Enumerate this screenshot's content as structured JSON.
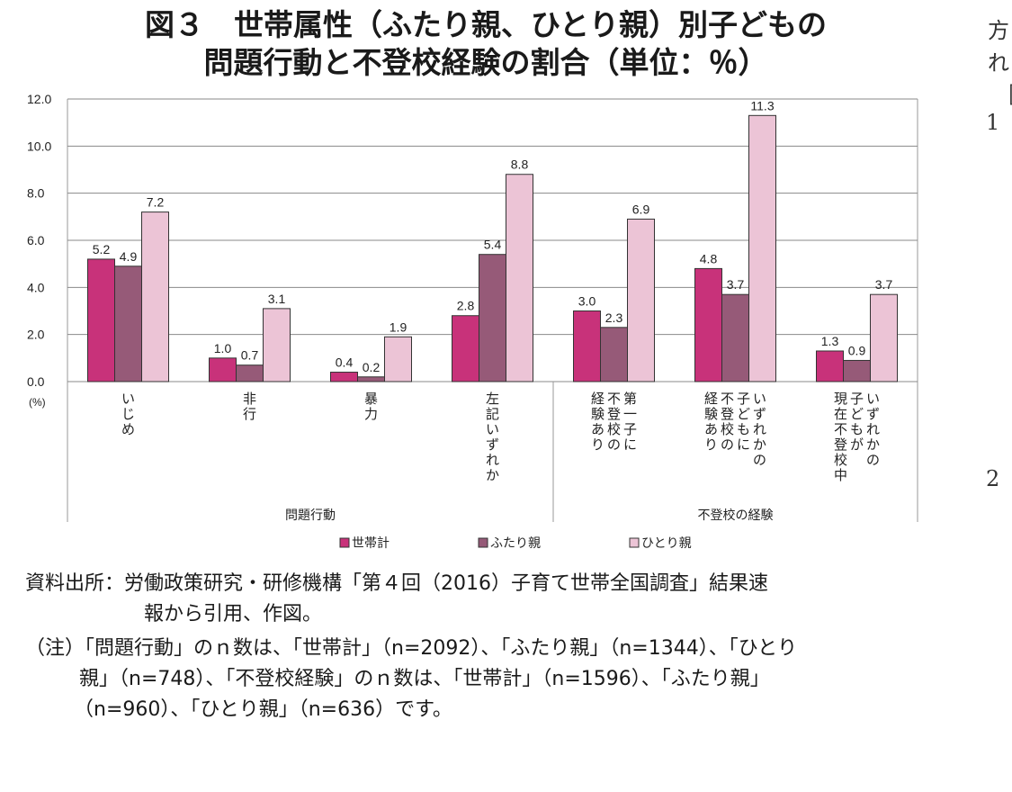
{
  "title_line1": "図３　世帯属性（ふたり親、ひとり親）別子どもの",
  "title_line2": "問題行動と不登校経験の割合（単位：％）",
  "margin": {
    "t1": "方",
    "t2": "れ",
    "t3": "［",
    "n1": "1",
    "n2": "2"
  },
  "chart_data": {
    "type": "bar",
    "ylim": [
      0,
      12
    ],
    "yticks": [
      "12.0",
      "10.0",
      "8.0",
      "6.0",
      "4.0",
      "2.0",
      "0.0"
    ],
    "yunit": "(%)",
    "categories": [
      {
        "label_cols": [
          "いじめ"
        ],
        "group": "問題行動"
      },
      {
        "label_cols": [
          "非行"
        ],
        "group": "問題行動"
      },
      {
        "label_cols": [
          "暴力"
        ],
        "group": "問題行動"
      },
      {
        "label_cols": [
          "左記いずれか"
        ],
        "group": "問題行動"
      },
      {
        "label_cols": [
          "第一子に",
          "不登校の",
          "経験あり"
        ],
        "group": "不登校の経験"
      },
      {
        "label_cols": [
          "いずれかの",
          "子どもに",
          "不登校の",
          "経験あり"
        ],
        "group": "不登校の経験"
      },
      {
        "label_cols": [
          "いずれかの",
          "子どもが",
          "現在不登校中"
        ],
        "group": "不登校の経験"
      }
    ],
    "series": [
      {
        "name": "世帯計",
        "color": "#c8327a",
        "values": [
          5.2,
          1.0,
          0.4,
          2.8,
          3.0,
          4.8,
          1.3
        ],
        "labels": [
          "5.2",
          "1.0",
          "0.4",
          "2.8",
          "3.0",
          "4.8",
          "1.3"
        ]
      },
      {
        "name": "ふたり親",
        "color": "#965a78",
        "values": [
          4.9,
          0.7,
          0.2,
          5.4,
          2.3,
          3.7,
          0.9
        ],
        "labels": [
          "4.9",
          "0.7",
          "0.2",
          "5.4",
          "2.3",
          "3.7",
          "0.9"
        ]
      },
      {
        "name": "ひとり親",
        "color": "#ecc4d6",
        "values": [
          7.2,
          3.1,
          1.9,
          8.8,
          6.9,
          11.3,
          3.7
        ],
        "labels": [
          "7.2",
          "3.1",
          "1.9",
          "8.8",
          "6.9",
          "11.3",
          "3.7"
        ]
      }
    ],
    "groups": [
      "問題行動",
      "不登校の経験"
    ],
    "grid": true,
    "legend": "bottom"
  },
  "notes": {
    "source_line1": "資料出所：労働政策研究・研修機構「第４回（2016）子育て世帯全国調査」結果速",
    "source_line2": "報から引用、作図。",
    "note_line1": "（注）「問題行動」のｎ数は、「世帯計」（n=2092）、「ふたり親」（n=1344）、「ひとり",
    "note_line2": "親」（n=748）、「不登校経験」のｎ数は、「世帯計」（n=1596）、「ふたり親」",
    "note_line3": "（n=960）、「ひとり親」（n=636）です。"
  }
}
